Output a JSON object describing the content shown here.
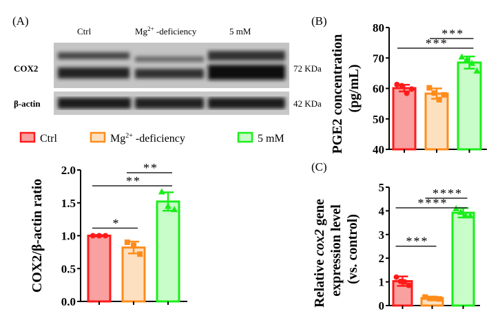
{
  "panel_labels": {
    "a": "(A)",
    "b": "(B)",
    "c": "(C)"
  },
  "blot": {
    "lanes": [
      "Ctrl",
      "Mg",
      "2+",
      " -deficiency",
      "5 mM"
    ],
    "rows": [
      {
        "name": "COX2",
        "size": "72 KDa"
      },
      {
        "name": "β-actin",
        "size": "42 KDa"
      }
    ]
  },
  "legend": [
    {
      "label": "Ctrl",
      "sup": "",
      "suffix": "",
      "edge": "#ff1a1a",
      "fill": "#f9a0a0"
    },
    {
      "label": "Mg",
      "sup": "2+",
      "suffix": " -deficiency",
      "edge": "#ff8c1a",
      "fill": "#fde0c0"
    },
    {
      "label": "5 mM",
      "sup": "",
      "suffix": "",
      "edge": "#1aee1a",
      "fill": "#c8fcc8"
    }
  ],
  "chart_data": [
    {
      "type": "bar",
      "panel": "A",
      "ylabel": "COX2/β-actin ratio",
      "ylim": [
        0,
        2.0
      ],
      "yticks": [
        "0.0",
        "0.5",
        "1.0",
        "1.5",
        "2.0"
      ],
      "categories": [
        "Ctrl",
        "Mg2+ -deficiency",
        "5 mM"
      ],
      "values": [
        1.0,
        0.82,
        1.52
      ],
      "errors": [
        0.01,
        0.09,
        0.14
      ],
      "points": [
        [
          1.0,
          1.0,
          1.0
        ],
        [
          0.9,
          0.85,
          0.72
        ],
        [
          1.67,
          1.45,
          1.4
        ]
      ],
      "significance": [
        {
          "from": 0,
          "to": 1,
          "label": "*"
        },
        {
          "from": 0,
          "to": 2,
          "label": "**"
        },
        {
          "from": 1,
          "to": 2,
          "label": "**"
        }
      ]
    },
    {
      "type": "bar",
      "panel": "B",
      "ylabel": "PGE2 concentration",
      "ylabel2": "(pg/mL)",
      "ylim": [
        40,
        80
      ],
      "yticks": [
        "40",
        "50",
        "60",
        "70",
        "80"
      ],
      "categories": [
        "Ctrl",
        "Mg2+ -deficiency",
        "5 mM"
      ],
      "values": [
        60.1,
        58.3,
        68.5
      ],
      "errors": [
        1.1,
        1.7,
        2.0
      ],
      "points": [
        [
          61.3,
          60.9,
          58.4,
          59.8
        ],
        [
          60.2,
          58.5,
          56.3,
          57.9
        ],
        [
          70.4,
          69.6,
          68.3,
          65.8
        ]
      ],
      "significance": [
        {
          "from": 0,
          "to": 2,
          "label": "***"
        },
        {
          "from": 1,
          "to": 2,
          "label": "***"
        }
      ]
    },
    {
      "type": "bar",
      "panel": "C",
      "ylabel_pre": "Relative ",
      "ylabel_italic": "cox2",
      "ylabel_post": " gene",
      "ylabel2": "expression level",
      "ylabel3": "(vs. control)",
      "ylim": [
        0,
        5
      ],
      "yticks": [
        "0",
        "1",
        "2",
        "3",
        "4",
        "5"
      ],
      "categories": [
        "Ctrl",
        "Mg2+ -deficiency",
        "5 mM"
      ],
      "values": [
        1.03,
        0.32,
        3.92
      ],
      "errors": [
        0.2,
        0.05,
        0.2
      ],
      "points": [
        [
          1.2,
          1.02,
          1.0,
          0.85
        ],
        [
          0.36,
          0.3,
          0.3,
          0.28
        ],
        [
          4.1,
          3.95,
          3.8,
          3.8
        ]
      ],
      "significance": [
        {
          "from": 0,
          "to": 1,
          "label": "***"
        },
        {
          "from": 0,
          "to": 2,
          "label": "****"
        },
        {
          "from": 1,
          "to": 2,
          "label": "****"
        }
      ]
    }
  ]
}
